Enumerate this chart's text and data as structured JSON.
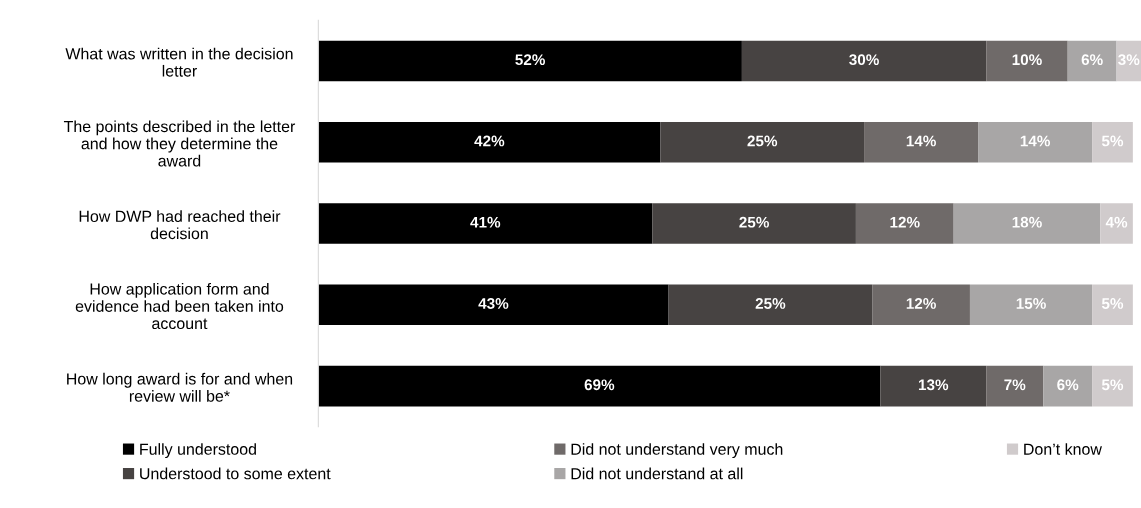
{
  "chart_data": {
    "type": "bar",
    "orientation": "horizontal",
    "stacked": true,
    "categories": [
      "What was written in the decision\nletter",
      "The points described in the letter\nand how they determine the\naward",
      "How DWP had reached their\ndecision",
      "How application form and\nevidence had been taken into\naccount",
      "How long award is for and when\nreview will be*"
    ],
    "series": [
      {
        "name": "Fully understood",
        "color": "#000000",
        "values": [
          52,
          42,
          41,
          43,
          69
        ],
        "value_labels": [
          "52%",
          "42%",
          "41%",
          "43%",
          "69%"
        ]
      },
      {
        "name": "Understood to some extent",
        "color": "#474342",
        "values": [
          30,
          25,
          25,
          25,
          13
        ],
        "value_labels": [
          "30%",
          "25%",
          "25%",
          "25%",
          "13%"
        ]
      },
      {
        "name": "Did not understand very much",
        "color": "#6f6a69",
        "values": [
          10,
          14,
          12,
          12,
          7
        ],
        "value_labels": [
          "10%",
          "14%",
          "12%",
          "12%",
          "7%"
        ]
      },
      {
        "name": "Did not understand at all",
        "color": "#a8a6a6",
        "values": [
          6,
          14,
          18,
          15,
          6
        ],
        "value_labels": [
          "6%",
          "14%",
          "18%",
          "15%",
          "6%"
        ]
      },
      {
        "name": "Don’t know",
        "color": "#d0cbcc",
        "values": [
          3,
          5,
          4,
          5,
          5
        ],
        "value_labels": [
          "3%",
          "5%",
          "4%",
          "5%",
          "5%"
        ]
      }
    ],
    "xlim": [
      0,
      101
    ],
    "tick_labels": "y",
    "grid": false,
    "legend": "bottom"
  }
}
